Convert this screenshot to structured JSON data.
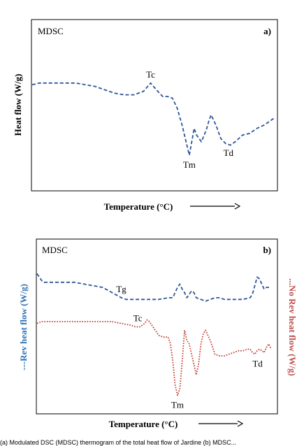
{
  "caption": "(a) Modulated DSC (MDSC) thermogram of the total heat flow of Jardine (b) MDSC...",
  "chart_data": [
    {
      "type": "line",
      "panel_label": "a)",
      "method_label": "MDSC",
      "xlabel": "Temperature (°C)",
      "ylabel": "Heat flow (W/g)",
      "grid": false,
      "legend": "none",
      "series": [
        {
          "color": "#2f5597",
          "style": "dashed",
          "x": [
            0,
            3,
            6,
            10,
            14,
            18,
            22,
            26,
            30,
            34,
            38,
            42,
            46,
            49,
            52,
            54,
            56,
            58,
            60,
            62,
            64,
            65,
            66,
            67,
            68,
            70,
            72,
            73,
            74,
            76,
            78,
            80,
            82,
            84,
            87,
            90,
            93,
            96,
            100
          ],
          "y": [
            62,
            63,
            63,
            63,
            63,
            63,
            62,
            61,
            59,
            57,
            56,
            56,
            58,
            63,
            58,
            55,
            55,
            54,
            48,
            38,
            26,
            20,
            28,
            36,
            32,
            28,
            35,
            40,
            44,
            38,
            30,
            27,
            26,
            28,
            32,
            33,
            36,
            38,
            42
          ]
        }
      ],
      "annotations": [
        {
          "text": "Tc",
          "x": 49,
          "y": 63
        },
        {
          "text": "Tm",
          "x": 65,
          "y": 20
        },
        {
          "text": "Td",
          "x": 80,
          "y": 27
        }
      ]
    },
    {
      "type": "line",
      "panel_label": "b)",
      "method_label": "MDSC",
      "xlabel": "Temperature (°C)",
      "ylabel_left": "---Rev heat flow (W/g)",
      "ylabel_right": "...No Rev heat flow (W/g)",
      "grid": false,
      "legend": "none",
      "series": [
        {
          "color": "#2f5597",
          "style": "dashed",
          "axis": "left",
          "x": [
            0,
            1,
            2,
            3,
            5,
            8,
            12,
            16,
            20,
            24,
            28,
            32,
            36,
            38,
            40,
            44,
            48,
            52,
            56,
            58,
            59,
            60,
            61,
            62,
            63,
            64,
            65,
            66,
            67,
            68,
            70,
            72,
            74,
            76,
            78,
            80,
            84,
            88,
            91,
            92,
            93,
            94,
            95,
            96,
            97,
            98,
            100
          ],
          "y": [
            81,
            79,
            77,
            76,
            76,
            76,
            76,
            76,
            75,
            74,
            73,
            70,
            67,
            66,
            66,
            66,
            66,
            66,
            67,
            67,
            70,
            73,
            75,
            72,
            70,
            67,
            69,
            71,
            70,
            67,
            66,
            65,
            66,
            67,
            67,
            66,
            66,
            66,
            67,
            69,
            74,
            79,
            78,
            75,
            72,
            73,
            73
          ]
        },
        {
          "color": "#c0392b",
          "style": "dotted",
          "axis": "right",
          "x": [
            0,
            2,
            4,
            8,
            12,
            16,
            20,
            24,
            28,
            32,
            36,
            40,
            42,
            44,
            46,
            47,
            48,
            50,
            52,
            54,
            56,
            57,
            58,
            59,
            60,
            61,
            62,
            63,
            64,
            65,
            66,
            67,
            68,
            69,
            70,
            71,
            72,
            74,
            76,
            78,
            80,
            82,
            84,
            86,
            88,
            90,
            91,
            92,
            93,
            94,
            95,
            96,
            97,
            98,
            99,
            100
          ],
          "y": [
            52,
            53,
            53,
            53,
            53,
            53,
            53,
            53,
            53,
            53,
            52,
            51,
            50,
            50,
            52,
            54,
            53,
            49,
            45,
            44,
            44,
            40,
            30,
            16,
            10,
            14,
            30,
            48,
            42,
            40,
            34,
            28,
            22,
            28,
            40,
            46,
            48,
            42,
            34,
            33,
            33,
            34,
            35,
            36,
            36,
            37,
            37,
            35,
            34,
            36,
            37,
            36,
            35,
            38,
            40,
            37
          ]
        }
      ],
      "annotations": [
        {
          "text": "Tg",
          "x": 36,
          "y": 67,
          "series": 0
        },
        {
          "text": "Tc",
          "x": 43,
          "y": 50,
          "series": 1
        },
        {
          "text": "Tm",
          "x": 60,
          "y": 10,
          "series": 1
        },
        {
          "text": "Td",
          "x": 93,
          "y": 34,
          "series": 1
        }
      ]
    }
  ]
}
